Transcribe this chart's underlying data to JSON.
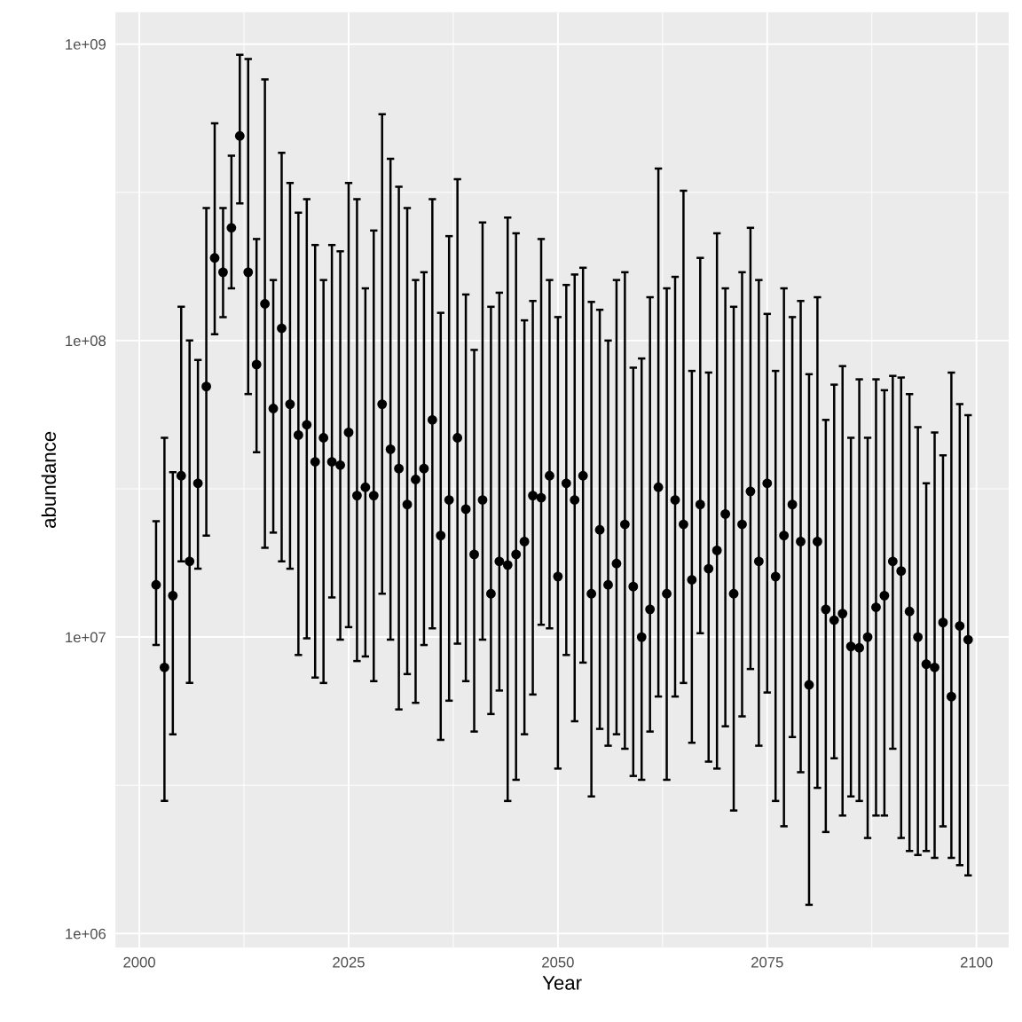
{
  "chart_data": {
    "type": "scatter",
    "xlabel": "Year",
    "ylabel": "abundance",
    "log": "y",
    "grid": true,
    "marker": "circle",
    "legend": false,
    "xlim": [
      1997.15,
      2103.85
    ],
    "xticks": [
      2000,
      2025,
      2050,
      2075,
      2100
    ],
    "ylim": [
      898000.0,
      1280000000.0
    ],
    "yticks": [
      {
        "value": 1000000.0,
        "label": "1e+06"
      },
      {
        "value": 10000000.0,
        "label": "1e+07"
      },
      {
        "value": 100000000.0,
        "label": "1e+08"
      },
      {
        "value": 1000000000.0,
        "label": "1e+09"
      }
    ],
    "x": [
      2002,
      2003,
      2004,
      2005,
      2006,
      2007,
      2008,
      2009,
      2010,
      2011,
      2012,
      2013,
      2014,
      2015,
      2016,
      2017,
      2018,
      2019,
      2020,
      2021,
      2022,
      2023,
      2024,
      2025,
      2026,
      2027,
      2028,
      2029,
      2030,
      2031,
      2032,
      2033,
      2034,
      2035,
      2036,
      2037,
      2038,
      2039,
      2040,
      2041,
      2042,
      2043,
      2044,
      2045,
      2046,
      2047,
      2048,
      2049,
      2050,
      2051,
      2052,
      2053,
      2054,
      2055,
      2056,
      2057,
      2058,
      2059,
      2060,
      2061,
      2062,
      2063,
      2064,
      2065,
      2066,
      2067,
      2068,
      2069,
      2070,
      2071,
      2072,
      2073,
      2074,
      2075,
      2076,
      2077,
      2078,
      2079,
      2080,
      2081,
      2082,
      2083,
      2084,
      2085,
      2086,
      2087,
      2088,
      2089,
      2090,
      2091,
      2092,
      2093,
      2094,
      2095,
      2096,
      2097,
      2098,
      2099
    ],
    "series": [
      {
        "color": "#000000",
        "values": [
          15000000.0,
          7900000.0,
          13800000.0,
          35000000.0,
          18000000.0,
          33000000.0,
          70000000.0,
          190000000.0,
          170000000.0,
          240000000.0,
          490000000.0,
          170000000.0,
          83000000.0,
          133000000.0,
          59000000.0,
          110000000.0,
          61000000.0,
          48000000.0,
          52000000.0,
          39000000.0,
          47000000.0,
          39000000.0,
          38000000.0,
          49000000.0,
          30000000.0,
          32000000.0,
          30000000.0,
          61000000.0,
          43000000.0,
          37000000.0,
          28000000.0,
          34000000.0,
          37000000.0,
          54000000.0,
          22000000.0,
          29000000.0,
          47000000.0,
          27000000.0,
          19000000.0,
          29000000.0,
          14000000.0,
          18000000.0,
          17500000.0,
          19000000.0,
          21000000.0,
          30000000.0,
          29500000.0,
          35000000.0,
          16000000.0,
          33000000.0,
          29000000.0,
          35000000.0,
          14000000.0,
          23000000.0,
          15000000.0,
          17700000.0,
          24000000.0,
          14800000.0,
          10000000.0,
          12400000.0,
          32000000.0,
          14000000.0,
          29000000.0,
          24000000.0,
          15600000.0,
          28000000.0,
          17000000.0,
          19600000.0,
          26000000.0,
          14000000.0,
          24000000.0,
          31000000.0,
          18000000.0,
          33000000.0,
          16000000.0,
          22000000.0,
          28000000.0,
          21000000.0,
          6900000.0,
          21000000.0,
          12400000.0,
          11400000.0,
          12000000.0,
          9300000.0,
          9200000.0,
          10000000.0,
          12600000.0,
          13800000.0,
          18000000.0,
          16700000.0,
          12200000.0,
          10000000.0,
          8100000.0,
          7900000.0,
          11200000.0,
          6300000.0,
          10900000.0,
          9800000.0
        ],
        "errors": [
          [
            9400000.0,
            24600000.0
          ],
          [
            2800000.0,
            47000000.0
          ],
          [
            4700000.0,
            36000000.0
          ],
          [
            18000000.0,
            130000000.0
          ],
          [
            7000000.0,
            100000000.0
          ],
          [
            17000000.0,
            86000000.0
          ],
          [
            22000000.0,
            280000000.0
          ],
          [
            105000000.0,
            540000000.0
          ],
          [
            120000000.0,
            280000000.0
          ],
          [
            150000000.0,
            420000000.0
          ],
          [
            290000000.0,
            920000000.0
          ],
          [
            66000000.0,
            890000000.0
          ],
          [
            42000000.0,
            220000000.0
          ],
          [
            20000000.0,
            760000000.0
          ],
          [
            22500000.0,
            160000000.0
          ],
          [
            18000000.0,
            430000000.0
          ],
          [
            17000000.0,
            340000000.0
          ],
          [
            8700000.0,
            270000000.0
          ],
          [
            9900000.0,
            300000000.0
          ],
          [
            7300000.0,
            210000000.0
          ],
          [
            7000000.0,
            160000000.0
          ],
          [
            13600000.0,
            210000000.0
          ],
          [
            9800000.0,
            200000000.0
          ],
          [
            10800000.0,
            340000000.0
          ],
          [
            8300000.0,
            300000000.0
          ],
          [
            8600000.0,
            150000000.0
          ],
          [
            7100000.0,
            235000000.0
          ],
          [
            14000000.0,
            580000000.0
          ],
          [
            9800000.0,
            410000000.0
          ],
          [
            5700000.0,
            330000000.0
          ],
          [
            7500000.0,
            280000000.0
          ],
          [
            6000000.0,
            160000000.0
          ],
          [
            9400000.0,
            170000000.0
          ],
          [
            10700000.0,
            300000000.0
          ],
          [
            4500000.0,
            124000000.0
          ],
          [
            6100000.0,
            225000000.0
          ],
          [
            9500000.0,
            350000000.0
          ],
          [
            7100000.0,
            143000000.0
          ],
          [
            4800000.0,
            93000000.0
          ],
          [
            9800000.0,
            250000000.0
          ],
          [
            5500000.0,
            130000000.0
          ],
          [
            6600000.0,
            145000000.0
          ],
          [
            2800000.0,
            260000000.0
          ],
          [
            3300000.0,
            230000000.0
          ],
          [
            4700000.0,
            117000000.0
          ],
          [
            6400000.0,
            136000000.0
          ],
          [
            11000000.0,
            220000000.0
          ],
          [
            10700000.0,
            160000000.0
          ],
          [
            3600000.0,
            120000000.0
          ],
          [
            8700000.0,
            154000000.0
          ],
          [
            5200000.0,
            167000000.0
          ],
          [
            8200000.0,
            176000000.0
          ],
          [
            2900000.0,
            135000000.0
          ],
          [
            4900000.0,
            127000000.0
          ],
          [
            4300000.0,
            100000000.0
          ],
          [
            4700000.0,
            160000000.0
          ],
          [
            4200000.0,
            170000000.0
          ],
          [
            3400000.0,
            81000000.0
          ],
          [
            3300000.0,
            87000000.0
          ],
          [
            4800000.0,
            140000000.0
          ],
          [
            6300000.0,
            380000000.0
          ],
          [
            3300000.0,
            150000000.0
          ],
          [
            6300000.0,
            164000000.0
          ],
          [
            7000000.0,
            320000000.0
          ],
          [
            4400000.0,
            79000000.0
          ],
          [
            10300000.0,
            190000000.0
          ],
          [
            3800000.0,
            78000000.0
          ],
          [
            3600000.0,
            230000000.0
          ],
          [
            5000000.0,
            150000000.0
          ],
          [
            2600000.0,
            130000000.0
          ],
          [
            5400000.0,
            170000000.0
          ],
          [
            7800000.0,
            240000000.0
          ],
          [
            4300000.0,
            160000000.0
          ],
          [
            6500000.0,
            123000000.0
          ],
          [
            2800000.0,
            79000000.0
          ],
          [
            2300000.0,
            150000000.0
          ],
          [
            4600000.0,
            120000000.0
          ],
          [
            3500000.0,
            136000000.0
          ],
          [
            1250000.0,
            77000000.0
          ],
          [
            3100000.0,
            140000000.0
          ],
          [
            2200000.0,
            54000000.0
          ],
          [
            3900000.0,
            71000000.0
          ],
          [
            2500000.0,
            82000000.0
          ],
          [
            2900000.0,
            47000000.0
          ],
          [
            2800000.0,
            74000000.0
          ],
          [
            2100000.0,
            47000000.0
          ],
          [
            2500000.0,
            74000000.0
          ],
          [
            2500000.0,
            68000000.0
          ],
          [
            4200000.0,
            76000000.0
          ],
          [
            2100000.0,
            75000000.0
          ],
          [
            1900000.0,
            66000000.0
          ],
          [
            1840000.0,
            51000000.0
          ],
          [
            1900000.0,
            33000000.0
          ],
          [
            1800000.0,
            49000000.0
          ],
          [
            2300000.0,
            41000000.0
          ],
          [
            1800000.0,
            78000000.0
          ],
          [
            1700000.0,
            61000000.0
          ],
          [
            1570000.0,
            56000000.0
          ]
        ]
      }
    ]
  }
}
